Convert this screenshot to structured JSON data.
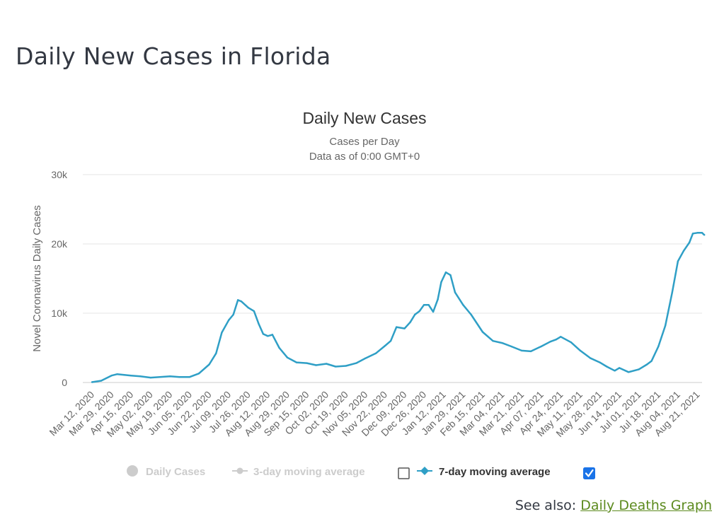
{
  "page": {
    "title": "Daily New Cases in Florida",
    "see_also_label": "See also:",
    "see_also_link": "Daily Deaths Graph"
  },
  "colors": {
    "series": "#2f9fc6",
    "grid": "#e6e6e6",
    "inactive": "#cccccc",
    "active_text": "#333333",
    "checkbox_checked": "#1a73e8",
    "link": "#5c8a1e"
  },
  "legend": [
    {
      "label": "Daily Cases",
      "active": false,
      "icon": "circle-icon"
    },
    {
      "label": "3-day moving average",
      "active": false,
      "icon": "line-dot-icon",
      "checkbox": "unchecked"
    },
    {
      "label": "7-day moving average",
      "active": true,
      "icon": "line-diamond-icon",
      "checkbox": "checked"
    }
  ],
  "chart_data": {
    "type": "line",
    "title": "Daily New Cases",
    "subtitle": [
      "Cases per Day",
      "Data as of 0:00 GMT+0"
    ],
    "ylabel": "Novel Coronavirus Daily Cases",
    "ylim": [
      0,
      30000
    ],
    "yticks": [
      0,
      10000,
      20000,
      30000
    ],
    "ytick_labels": [
      "0",
      "10k",
      "20k",
      "30k"
    ],
    "xticks": [
      "Mar 12, 2020",
      "Mar 29, 2020",
      "Apr 15, 2020",
      "May 02, 2020",
      "May 19, 2020",
      "Jun 05, 2020",
      "Jun 22, 2020",
      "Jul 09, 2020",
      "Jul 26, 2020",
      "Aug 12, 2020",
      "Aug 29, 2020",
      "Sep 15, 2020",
      "Oct 02, 2020",
      "Oct 19, 2020",
      "Nov 05, 2020",
      "Nov 22, 2020",
      "Dec 09, 2020",
      "Dec 26, 2020",
      "Jan 12, 2021",
      "Jan 29, 2021",
      "Feb 15, 2021",
      "Mar 04, 2021",
      "Mar 21, 2021",
      "Apr 07, 2021",
      "Apr 24, 2021",
      "May 11, 2021",
      "May 28, 2021",
      "Jun 14, 2021",
      "Jul 01, 2021",
      "Jul 18, 2021",
      "Aug 04, 2021",
      "Aug 21, 2021"
    ],
    "grid": true,
    "series": [
      {
        "name": "7-day moving average",
        "x": [
          "Mar 12, 2020",
          "Mar 20, 2020",
          "Mar 29, 2020",
          "Apr 03, 2020",
          "Apr 09, 2020",
          "Apr 15, 2020",
          "Apr 23, 2020",
          "May 02, 2020",
          "May 10, 2020",
          "May 19, 2020",
          "May 27, 2020",
          "Jun 05, 2020",
          "Jun 13, 2020",
          "Jun 22, 2020",
          "Jun 28, 2020",
          "Jul 03, 2020",
          "Jul 09, 2020",
          "Jul 13, 2020",
          "Jul 17, 2020",
          "Jul 20, 2020",
          "Jul 26, 2020",
          "Jul 31, 2020",
          "Aug 04, 2020",
          "Aug 08, 2020",
          "Aug 12, 2020",
          "Aug 16, 2020",
          "Aug 22, 2020",
          "Aug 29, 2020",
          "Sep 06, 2020",
          "Sep 15, 2020",
          "Sep 23, 2020",
          "Oct 02, 2020",
          "Oct 10, 2020",
          "Oct 19, 2020",
          "Oct 28, 2020",
          "Nov 05, 2020",
          "Nov 14, 2020",
          "Nov 22, 2020",
          "Nov 27, 2020",
          "Dec 02, 2020",
          "Dec 09, 2020",
          "Dec 14, 2020",
          "Dec 18, 2020",
          "Dec 22, 2020",
          "Dec 26, 2020",
          "Dec 30, 2020",
          "Jan 03, 2021",
          "Jan 07, 2021",
          "Jan 10, 2021",
          "Jan 14, 2021",
          "Jan 18, 2021",
          "Jan 22, 2021",
          "Jan 29, 2021",
          "Feb 05, 2021",
          "Feb 15, 2021",
          "Feb 24, 2021",
          "Mar 04, 2021",
          "Mar 12, 2021",
          "Mar 21, 2021",
          "Mar 29, 2021",
          "Apr 07, 2021",
          "Apr 15, 2021",
          "Apr 20, 2021",
          "Apr 24, 2021",
          "May 03, 2021",
          "May 11, 2021",
          "May 20, 2021",
          "May 28, 2021",
          "Jun 03, 2021",
          "Jun 10, 2021",
          "Jun 14, 2021",
          "Jun 22, 2021",
          "Jul 01, 2021",
          "Jul 08, 2021",
          "Jul 12, 2021",
          "Jul 18, 2021",
          "Jul 24, 2021",
          "Jul 30, 2021",
          "Aug 04, 2021",
          "Aug 09, 2021",
          "Aug 14, 2021",
          "Aug 17, 2021",
          "Aug 21, 2021",
          "Aug 25, 2021",
          "Aug 27, 2021"
        ],
        "values": [
          50,
          250,
          1000,
          1200,
          1100,
          1000,
          900,
          700,
          800,
          900,
          800,
          800,
          1300,
          2600,
          4200,
          7200,
          9000,
          9800,
          11900,
          11700,
          10800,
          10300,
          8500,
          7000,
          6700,
          6900,
          5000,
          3600,
          2900,
          2800,
          2500,
          2700,
          2300,
          2400,
          2800,
          3500,
          4200,
          5300,
          6000,
          8000,
          7800,
          8700,
          9800,
          10300,
          11200,
          11200,
          10200,
          12000,
          14500,
          15900,
          15500,
          13000,
          11200,
          9800,
          7300,
          6000,
          5700,
          5200,
          4600,
          4500,
          5200,
          5900,
          6200,
          6600,
          5800,
          4600,
          3500,
          2900,
          2300,
          1700,
          2100,
          1500,
          1900,
          2600,
          3100,
          5200,
          8200,
          13000,
          17500,
          19000,
          20200,
          21500,
          21600,
          21600,
          21300
        ]
      }
    ]
  }
}
